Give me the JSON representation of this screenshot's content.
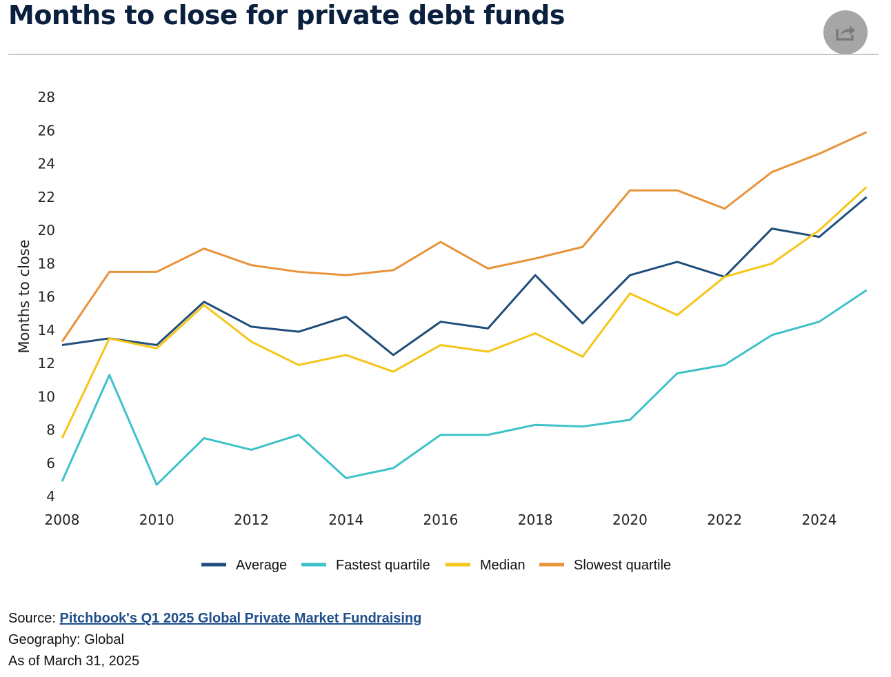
{
  "title": "Months to close for private debt funds",
  "share_icon": "share-icon",
  "chart_data": {
    "type": "line",
    "title": "Months to close for private debt funds",
    "xlabel": "",
    "ylabel": "Months to close",
    "x": [
      2008,
      2009,
      2010,
      2011,
      2012,
      2013,
      2014,
      2015,
      2016,
      2017,
      2018,
      2019,
      2020,
      2021,
      2022,
      2023,
      2024,
      2025
    ],
    "xticks": [
      "2008",
      "2010",
      "2012",
      "2014",
      "2016",
      "2018",
      "2020",
      "2022",
      "2024"
    ],
    "yticks": [
      "4",
      "6",
      "8",
      "10",
      "12",
      "14",
      "16",
      "18",
      "20",
      "22",
      "24",
      "26",
      "28"
    ],
    "ylim": [
      4,
      28
    ],
    "grid": false,
    "legend_position": "bottom",
    "series": [
      {
        "name": "Average",
        "color": "#1f4e7a",
        "values": [
          13.1,
          13.5,
          13.1,
          15.7,
          14.2,
          13.9,
          14.8,
          12.5,
          14.5,
          14.1,
          17.3,
          14.4,
          17.3,
          18.1,
          17.2,
          20.1,
          19.6,
          22.0
        ]
      },
      {
        "name": "Fastest quartile",
        "color": "#3fc1c9",
        "values": [
          4.9,
          11.3,
          4.7,
          7.5,
          6.8,
          7.7,
          5.1,
          5.7,
          7.7,
          7.7,
          8.3,
          8.2,
          8.6,
          11.4,
          11.9,
          13.7,
          14.5,
          16.4
        ]
      },
      {
        "name": "Median",
        "color": "#f5c518",
        "values": [
          7.5,
          13.5,
          12.9,
          15.5,
          13.3,
          11.9,
          12.5,
          11.5,
          13.1,
          12.7,
          13.8,
          12.4,
          16.2,
          14.9,
          17.2,
          18.0,
          20.0,
          22.6
        ]
      },
      {
        "name": "Slowest quartile",
        "color": "#e8923a",
        "values": [
          13.3,
          17.5,
          17.5,
          18.9,
          17.9,
          17.5,
          17.3,
          17.6,
          19.3,
          17.7,
          18.3,
          19.0,
          22.4,
          22.4,
          21.3,
          23.5,
          24.6,
          25.9
        ]
      }
    ]
  },
  "footer": {
    "source_label": "Source: ",
    "source_link": "Pitchbook's Q1 2025 Global Private Market Fundraising",
    "geography": "Geography: Global",
    "as_of": "As of March 31, 2025"
  }
}
